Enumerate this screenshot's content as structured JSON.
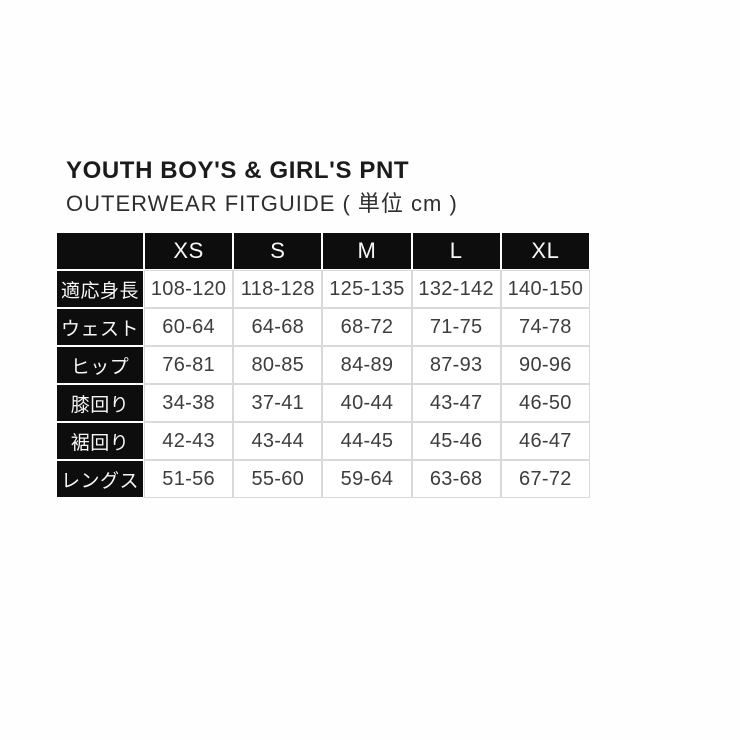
{
  "header": {
    "title": "YOUTH BOY'S & GIRL'S PNT",
    "subtitle": "OUTERWEAR FITGUIDE ( 単位 cm )"
  },
  "colors": {
    "page_background": "#ffffff",
    "table_header_bg": "#0d0d0d",
    "table_header_text": "#ffffff",
    "cell_bg": "#ffffff",
    "cell_text": "#3d3d3d",
    "grid_line": "#d9d9d9"
  },
  "chart_data": {
    "type": "table",
    "title": "YOUTH BOY'S & GIRL'S PNT",
    "subtitle": "OUTERWEAR FITGUIDE",
    "unit": "cm",
    "columns": [
      "XS",
      "S",
      "M",
      "L",
      "XL"
    ],
    "rows": [
      {
        "label": "適応身長",
        "values": [
          "108-120",
          "118-128",
          "125-135",
          "132-142",
          "140-150"
        ]
      },
      {
        "label": "ウェスト",
        "values": [
          "60-64",
          "64-68",
          "68-72",
          "71-75",
          "74-78"
        ]
      },
      {
        "label": "ヒップ",
        "values": [
          "76-81",
          "80-85",
          "84-89",
          "87-93",
          "90-96"
        ]
      },
      {
        "label": "膝回り",
        "values": [
          "34-38",
          "37-41",
          "40-44",
          "43-47",
          "46-50"
        ]
      },
      {
        "label": "裾回り",
        "values": [
          "42-43",
          "43-44",
          "44-45",
          "45-46",
          "46-47"
        ]
      },
      {
        "label": "レングス",
        "values": [
          "51-56",
          "55-60",
          "59-64",
          "63-68",
          "67-72"
        ]
      }
    ]
  }
}
